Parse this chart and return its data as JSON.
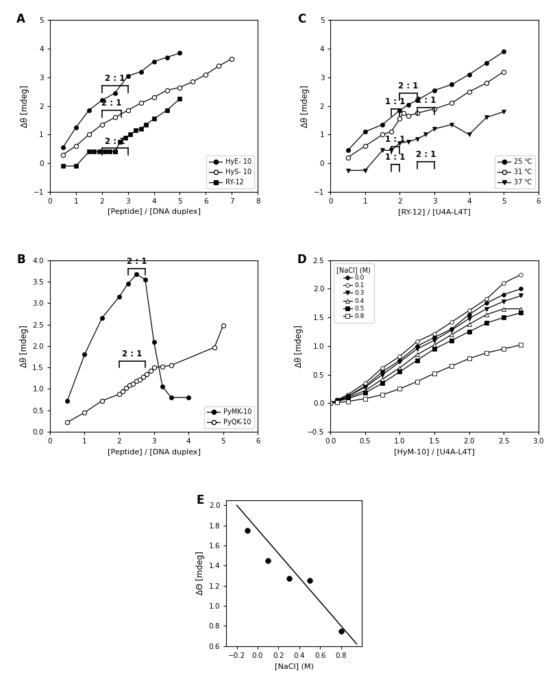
{
  "panelA": {
    "HyE10_x": [
      0.5,
      1.0,
      1.5,
      2.0,
      2.5,
      3.0,
      3.5,
      4.0,
      4.5,
      5.0
    ],
    "HyE10_y": [
      0.55,
      1.25,
      1.85,
      2.2,
      2.45,
      3.05,
      3.2,
      3.55,
      3.7,
      3.85
    ],
    "HyS10_x": [
      0.5,
      1.0,
      1.5,
      2.0,
      2.5,
      3.0,
      3.5,
      4.0,
      4.5,
      5.0,
      5.5,
      6.0,
      6.5,
      7.0
    ],
    "HyS10_y": [
      0.3,
      0.6,
      1.0,
      1.35,
      1.6,
      1.85,
      2.1,
      2.3,
      2.55,
      2.65,
      2.85,
      3.1,
      3.4,
      3.65
    ],
    "RY12_x": [
      0.5,
      1.0,
      1.5,
      1.7,
      1.9,
      2.1,
      2.3,
      2.5,
      2.5,
      2.7,
      2.9,
      3.1,
      3.3,
      3.5,
      3.7,
      4.0,
      4.5,
      5.0
    ],
    "RY12_y": [
      -0.1,
      -0.1,
      0.4,
      0.4,
      0.4,
      0.4,
      0.4,
      0.4,
      0.4,
      0.75,
      0.9,
      1.0,
      1.15,
      1.2,
      1.35,
      1.55,
      1.85,
      2.25
    ],
    "xlim": [
      0,
      8
    ],
    "ylim": [
      -1,
      5
    ],
    "xticks": [
      0,
      1,
      2,
      3,
      4,
      5,
      6,
      7,
      8
    ],
    "yticks": [
      -1,
      0,
      1,
      2,
      3,
      4,
      5
    ],
    "xlabel": "[Peptide] / [DNA duplex]",
    "ylabel": "Δθ [mdeg]",
    "legend_labels": [
      "HyE- 10",
      "HyS- 10",
      "RY-12"
    ]
  },
  "panelB": {
    "PyMK10_x": [
      0.5,
      1.0,
      1.5,
      2.0,
      2.25,
      2.5,
      2.75,
      3.0,
      3.25,
      3.5,
      4.0
    ],
    "PyMK10_y": [
      0.72,
      1.8,
      2.65,
      3.15,
      3.45,
      3.67,
      3.55,
      2.1,
      1.05,
      0.8,
      0.8
    ],
    "PyQK10_x": [
      0.5,
      1.0,
      1.5,
      2.0,
      2.1,
      2.2,
      2.3,
      2.4,
      2.5,
      2.6,
      2.7,
      2.8,
      2.9,
      3.0,
      3.25,
      3.5,
      4.75,
      5.0
    ],
    "PyQK10_y": [
      0.22,
      0.45,
      0.72,
      0.88,
      0.95,
      1.02,
      1.08,
      1.12,
      1.18,
      1.22,
      1.28,
      1.35,
      1.42,
      1.5,
      1.52,
      1.55,
      1.97,
      2.48
    ],
    "xlim": [
      0,
      6
    ],
    "ylim": [
      0.0,
      4.0
    ],
    "xticks": [
      0,
      1,
      2,
      3,
      4,
      5,
      6
    ],
    "yticks": [
      0.0,
      0.5,
      1.0,
      1.5,
      2.0,
      2.5,
      3.0,
      3.5,
      4.0
    ],
    "xlabel": "[Peptide] / [DNA duplex]",
    "ylabel": "Δθ [mdeg]",
    "bracket_PyMK10_x1": 2.25,
    "bracket_PyMK10_x2": 2.75,
    "bracket_PyMK10_y": 3.8,
    "bracket_PyQK10_x1": 2.0,
    "bracket_PyQK10_x2": 2.75,
    "bracket_PyQK10_y": 1.65,
    "legend_labels": [
      "PyMK-10",
      "PyQK-10"
    ]
  },
  "panelC": {
    "T25_x": [
      0.5,
      1.0,
      1.5,
      2.0,
      2.25,
      2.5,
      3.0,
      3.5,
      4.0,
      4.5,
      5.0
    ],
    "T25_y": [
      0.45,
      1.1,
      1.35,
      1.85,
      2.05,
      2.2,
      2.55,
      2.75,
      3.1,
      3.5,
      3.9
    ],
    "T31_x": [
      0.5,
      1.0,
      1.5,
      1.75,
      2.0,
      2.1,
      2.25,
      2.5,
      3.0,
      3.5,
      4.0,
      4.5,
      5.0
    ],
    "T31_y": [
      0.2,
      0.6,
      1.0,
      1.1,
      1.55,
      1.75,
      1.65,
      1.75,
      1.9,
      2.1,
      2.5,
      2.8,
      3.2
    ],
    "T37_x": [
      0.5,
      1.0,
      1.5,
      1.75,
      1.75,
      2.0,
      2.25,
      2.5,
      2.75,
      3.0,
      3.5,
      4.0,
      4.5,
      5.0
    ],
    "T37_y": [
      -0.25,
      -0.25,
      0.45,
      0.45,
      0.45,
      0.7,
      0.75,
      0.85,
      1.0,
      1.2,
      1.35,
      1.0,
      1.6,
      1.8
    ],
    "xlim": [
      0,
      6
    ],
    "ylim": [
      -1,
      5
    ],
    "xticks": [
      0,
      1,
      2,
      3,
      4,
      5,
      6
    ],
    "yticks": [
      -1,
      0,
      1,
      2,
      3,
      4,
      5
    ],
    "xlabel": "[RY-12] / [U4A-L4T]",
    "ylabel": "Δθ [mdeg]",
    "legend_labels": [
      "25 ℃",
      "31 ℃",
      "37 ℃"
    ]
  },
  "panelD": {
    "NaCl00_x": [
      0.0,
      0.1,
      0.25,
      0.5,
      0.75,
      1.0,
      1.25,
      1.5,
      1.75,
      2.0,
      2.25,
      2.5,
      2.75
    ],
    "NaCl00_y": [
      0.0,
      0.05,
      0.12,
      0.3,
      0.55,
      0.75,
      1.0,
      1.15,
      1.3,
      1.55,
      1.75,
      1.9,
      2.0
    ],
    "NaCl01_x": [
      0.0,
      0.1,
      0.25,
      0.5,
      0.75,
      1.0,
      1.25,
      1.5,
      1.75,
      2.0,
      2.25,
      2.5,
      2.75
    ],
    "NaCl01_y": [
      0.0,
      0.06,
      0.15,
      0.35,
      0.62,
      0.82,
      1.08,
      1.22,
      1.42,
      1.62,
      1.82,
      2.1,
      2.25
    ],
    "NaCl03_x": [
      0.0,
      0.1,
      0.25,
      0.5,
      0.75,
      1.0,
      1.25,
      1.5,
      1.75,
      2.0,
      2.25,
      2.5,
      2.75
    ],
    "NaCl03_y": [
      0.0,
      0.05,
      0.12,
      0.28,
      0.5,
      0.72,
      0.95,
      1.1,
      1.28,
      1.48,
      1.65,
      1.78,
      1.88
    ],
    "NaCl04_x": [
      0.0,
      0.1,
      0.25,
      0.5,
      0.75,
      1.0,
      1.25,
      1.5,
      1.75,
      2.0,
      2.25,
      2.5,
      2.75
    ],
    "NaCl04_y": [
      0.0,
      0.04,
      0.1,
      0.22,
      0.42,
      0.62,
      0.85,
      1.02,
      1.2,
      1.38,
      1.55,
      1.65,
      1.65
    ],
    "NaCl05_x": [
      0.0,
      0.1,
      0.25,
      0.5,
      0.75,
      1.0,
      1.25,
      1.5,
      1.75,
      2.0,
      2.25,
      2.5,
      2.75
    ],
    "NaCl05_y": [
      0.0,
      0.03,
      0.08,
      0.18,
      0.35,
      0.55,
      0.75,
      0.95,
      1.1,
      1.25,
      1.4,
      1.5,
      1.58
    ],
    "NaCl08_x": [
      0.0,
      0.1,
      0.25,
      0.5,
      0.75,
      1.0,
      1.25,
      1.5,
      1.75,
      2.0,
      2.25,
      2.5,
      2.75
    ],
    "NaCl08_y": [
      0.0,
      0.01,
      0.03,
      0.08,
      0.15,
      0.25,
      0.38,
      0.52,
      0.65,
      0.78,
      0.88,
      0.95,
      1.02
    ],
    "xlim": [
      0.0,
      3.0
    ],
    "ylim": [
      -0.5,
      2.5
    ],
    "xticks": [
      0.0,
      0.5,
      1.0,
      1.5,
      2.0,
      2.5,
      3.0
    ],
    "yticks": [
      -0.5,
      0.0,
      0.5,
      1.0,
      1.5,
      2.0,
      2.5
    ],
    "xlabel": "[HyM-10] / [U4A-L4T]",
    "ylabel": "Δθ [mdeg]",
    "legend_labels": [
      "0.0",
      "0.1",
      "0.3",
      "0.4",
      "0.5",
      "0.8"
    ]
  },
  "panelE": {
    "x": [
      -0.1,
      0.1,
      0.3,
      0.5,
      0.8
    ],
    "y": [
      1.75,
      1.45,
      1.27,
      1.25,
      0.75
    ],
    "fit_x": [
      -0.2,
      0.95
    ],
    "fit_y": [
      2.0,
      0.62
    ],
    "xlim": [
      -0.3,
      1.0
    ],
    "ylim": [
      0.6,
      2.05
    ],
    "xticks": [
      -0.2,
      0.0,
      0.2,
      0.4,
      0.6,
      0.8
    ],
    "yticks": [
      0.6,
      0.8,
      1.0,
      1.2,
      1.4,
      1.6,
      1.8,
      2.0
    ],
    "xlabel": "[NaCl] (M)",
    "ylabel": "ΔΘ [mdeg]"
  }
}
